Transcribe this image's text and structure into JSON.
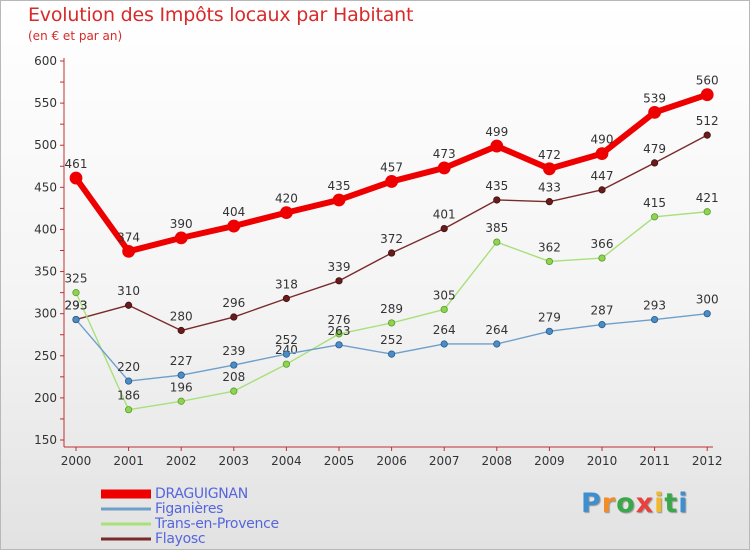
{
  "chart_data": {
    "type": "line",
    "title": "Evolution des Impôts locaux par Habitant",
    "subtitle": "(en € et par an)",
    "xlabel": "",
    "ylabel": "",
    "categories": [
      "2000",
      "2001",
      "2002",
      "2003",
      "2004",
      "2005",
      "2006",
      "2007",
      "2008",
      "2009",
      "2010",
      "2011",
      "2012"
    ],
    "ylim": [
      150,
      600
    ],
    "yticks": [
      150,
      200,
      250,
      300,
      350,
      400,
      450,
      500,
      550,
      600
    ],
    "grid": false,
    "series": [
      {
        "name": "DRAGUIGNAN",
        "color": "#ee0000",
        "values": [
          461,
          374,
          390,
          404,
          420,
          435,
          457,
          473,
          499,
          472,
          490,
          539,
          560
        ]
      },
      {
        "name": "Figanières",
        "color": "#6e9fcb",
        "values": [
          293,
          220,
          227,
          239,
          252,
          263,
          252,
          264,
          264,
          279,
          287,
          293,
          300
        ]
      },
      {
        "name": "Trans-en-Provence",
        "color": "#a8e07a",
        "values": [
          325,
          186,
          196,
          208,
          240,
          276,
          289,
          305,
          385,
          362,
          366,
          415,
          421
        ]
      },
      {
        "name": "Flayosc",
        "color": "#7a2a2a",
        "values": [
          293,
          310,
          280,
          296,
          318,
          339,
          372,
          401,
          435,
          433,
          447,
          479,
          512
        ]
      }
    ]
  },
  "brand": {
    "letters": [
      {
        "ch": "P",
        "color": "#3d8fd0"
      },
      {
        "ch": "r",
        "color": "#f28c28"
      },
      {
        "ch": "o",
        "color": "#3aa84a"
      },
      {
        "ch": "x",
        "color": "#e8423f"
      },
      {
        "ch": "i",
        "color": "#f2b72a"
      },
      {
        "ch": "t",
        "color": "#3aa84a"
      },
      {
        "ch": "i",
        "color": "#3d8fd0"
      }
    ]
  }
}
